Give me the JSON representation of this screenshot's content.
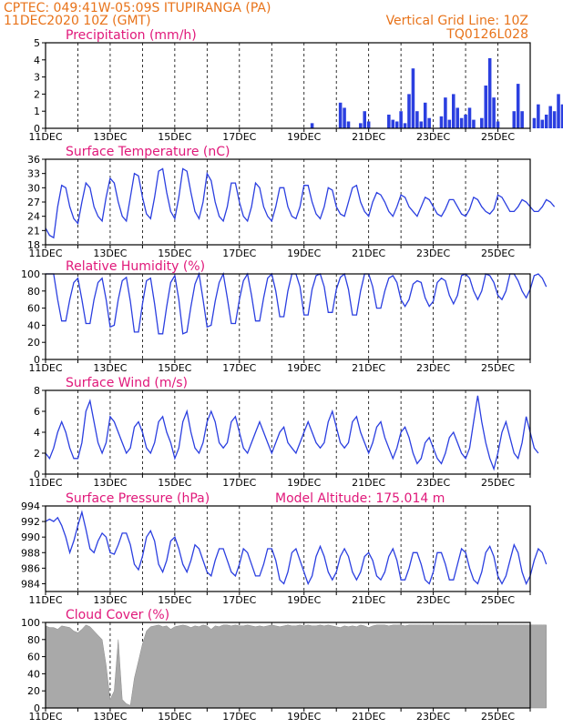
{
  "header": {
    "line1": "CPTEC:   049:41W-05:09S   ITUPIRANGA (PA)",
    "line2": "11DEC2020  10Z (GMT)",
    "right1": "Vertical Grid Line: 10Z",
    "right2": "TQ0126L028"
  },
  "x_tick_labels": [
    "11DEC",
    "13DEC",
    "15DEC",
    "17DEC",
    "19DEC",
    "21DEC",
    "23DEC",
    "25DEC"
  ],
  "colors": {
    "header": "#e8731a",
    "title": "#e0187a",
    "series": "#2b3fe0",
    "cloud": "#a9a9a9"
  },
  "chart_data": [
    {
      "type": "bar",
      "title": "Precipitation (mm/h)",
      "x_start": "11DEC2020 10Z",
      "x_step_hours": 3,
      "ylim": [
        0,
        5
      ],
      "yticks": [
        0,
        1,
        2,
        3,
        4,
        5
      ],
      "values": [
        0,
        0,
        0,
        0,
        0,
        0,
        0,
        0,
        0,
        0,
        0,
        0,
        0,
        0,
        0,
        0,
        0,
        0,
        0,
        0,
        0,
        0,
        0,
        0,
        0,
        0,
        0,
        0,
        0,
        0,
        0,
        0,
        0,
        0,
        0,
        0,
        0,
        0,
        0,
        0,
        0,
        0,
        0,
        0,
        0,
        0,
        0,
        0,
        0,
        0,
        0,
        0,
        0,
        0,
        0,
        0,
        0,
        0,
        0,
        0,
        0,
        0,
        0,
        0,
        0,
        0,
        0.3,
        0,
        0,
        0,
        0,
        0,
        0,
        1.5,
        1.2,
        0.4,
        0,
        0,
        0.3,
        1.0,
        0.4,
        0,
        0,
        0,
        0,
        0.8,
        0.5,
        0.4,
        1.0,
        0.3,
        2.0,
        3.5,
        1.0,
        0.4,
        1.5,
        0.6,
        0,
        0,
        0.7,
        1.8,
        0.5,
        2.0,
        1.2,
        0.6,
        0.8,
        1.2,
        0.5,
        0,
        0.6,
        2.5,
        4.1,
        1.8,
        0.4,
        0,
        0,
        0,
        1.0,
        2.6,
        1.0,
        0,
        0,
        0.6,
        1.4,
        0.5,
        0.8,
        1.3,
        1.0,
        2.0,
        1.4,
        1.0
      ]
    },
    {
      "type": "line",
      "title": "Surface Temperature (nC)",
      "x_start": "11DEC2020 10Z",
      "x_step_hours": 3,
      "ylim": [
        18,
        36
      ],
      "yticks": [
        18,
        21,
        24,
        27,
        30,
        33,
        36
      ],
      "values": [
        21.5,
        20,
        19.5,
        26,
        30.5,
        30,
        26,
        23.5,
        22.5,
        27,
        31,
        30,
        26,
        24,
        23,
        28,
        32,
        31,
        27,
        24,
        23,
        28,
        33,
        32.5,
        28,
        24.5,
        23.5,
        28,
        33.5,
        34,
        29,
        25,
        23.5,
        28,
        34,
        33.5,
        29,
        25,
        23.5,
        27,
        33,
        31.5,
        27,
        24,
        23,
        26,
        31,
        31,
        27,
        24,
        23,
        26,
        31,
        30,
        26,
        24,
        23,
        26,
        30,
        30,
        26,
        24,
        23.5,
        26,
        30.5,
        30.5,
        27,
        24.5,
        23.5,
        26,
        30,
        29.5,
        26,
        24.5,
        24,
        27,
        30,
        30.5,
        27,
        25,
        24,
        27,
        29,
        28.5,
        27,
        25,
        24,
        26,
        28.5,
        28,
        26,
        25,
        24,
        26,
        28,
        27.5,
        26,
        24.5,
        24,
        25.5,
        27.5,
        27.5,
        26,
        24.5,
        24,
        25.5,
        28,
        27.5,
        26,
        25,
        24.5,
        25.5,
        28.5,
        28,
        26.5,
        25,
        25,
        26,
        27.5,
        27,
        26,
        25,
        25,
        26,
        27.5,
        27,
        26
      ]
    },
    {
      "type": "line",
      "title": "Relative Humidity (%)",
      "x_start": "11DEC2020 10Z",
      "x_step_hours": 3,
      "ylim": [
        0,
        100
      ],
      "yticks": [
        0,
        20,
        40,
        60,
        80,
        100
      ],
      "values": [
        100,
        100,
        100,
        70,
        45,
        45,
        70,
        90,
        95,
        70,
        42,
        42,
        70,
        90,
        95,
        70,
        38,
        40,
        70,
        92,
        96,
        68,
        32,
        32,
        65,
        92,
        95,
        65,
        30,
        30,
        62,
        90,
        98,
        70,
        30,
        32,
        62,
        88,
        100,
        70,
        38,
        40,
        68,
        90,
        100,
        72,
        42,
        42,
        70,
        92,
        100,
        75,
        45,
        45,
        72,
        95,
        100,
        80,
        50,
        50,
        80,
        100,
        100,
        85,
        52,
        52,
        82,
        98,
        100,
        85,
        55,
        55,
        82,
        96,
        100,
        82,
        52,
        52,
        80,
        100,
        100,
        85,
        60,
        60,
        80,
        95,
        98,
        90,
        70,
        62,
        70,
        88,
        92,
        90,
        72,
        62,
        68,
        90,
        95,
        92,
        75,
        65,
        75,
        98,
        100,
        95,
        80,
        70,
        80,
        100,
        98,
        90,
        75,
        70,
        80,
        100,
        100,
        92,
        80,
        72,
        82,
        98,
        100,
        95,
        85
      ]
    },
    {
      "type": "line",
      "title": "Surface Wind (m/s)",
      "x_start": "11DEC2020 10Z",
      "x_step_hours": 3,
      "ylim": [
        0,
        8
      ],
      "yticks": [
        0,
        2,
        4,
        6,
        8
      ],
      "values": [
        2,
        1.5,
        2.5,
        4,
        5,
        4,
        2.5,
        1.5,
        1.5,
        3,
        6,
        7,
        5,
        3,
        2,
        3,
        5.5,
        5,
        4,
        3,
        2,
        2.5,
        4.5,
        5,
        4,
        2.5,
        2,
        3,
        5,
        5.5,
        4,
        3,
        1.5,
        2.5,
        5,
        6,
        4,
        2.5,
        2,
        3,
        5,
        6,
        5,
        3,
        2.5,
        3,
        5,
        5.5,
        4,
        2.5,
        2,
        3,
        4,
        5,
        4,
        3,
        2,
        3,
        4,
        4.5,
        3,
        2.5,
        2,
        3,
        4,
        5,
        4,
        3,
        2.5,
        3,
        5,
        6,
        4.5,
        3,
        2.5,
        3,
        5,
        5.5,
        4,
        3,
        2,
        3,
        4.5,
        5,
        3.5,
        2.5,
        1.5,
        2.5,
        4,
        4.5,
        3.5,
        2,
        1,
        1.5,
        3,
        3.5,
        2.5,
        1.5,
        1,
        2,
        3.5,
        4,
        3,
        2,
        1.5,
        2.5,
        5,
        7.5,
        5,
        3,
        1.5,
        0.5,
        2,
        4,
        5,
        3.5,
        2,
        1.5,
        3,
        5.5,
        4,
        2.5,
        2
      ]
    },
    {
      "type": "line",
      "title": "Surface Pressure (hPa)",
      "note": "Model Altitude: 175.014 m",
      "x_start": "11DEC2020 10Z",
      "x_step_hours": 3,
      "ylim": [
        983,
        994
      ],
      "yticks": [
        984,
        986,
        988,
        990,
        992,
        994
      ],
      "values": [
        992,
        992.3,
        992,
        992.5,
        991.5,
        990,
        988,
        989.5,
        991.5,
        993.2,
        991,
        988.5,
        988,
        989.5,
        990.5,
        990,
        988,
        987.8,
        989,
        990.5,
        990.5,
        989,
        986.5,
        985.8,
        987.5,
        990,
        990.8,
        989.5,
        986.5,
        985.5,
        987,
        989.5,
        990,
        988.5,
        986.5,
        985.5,
        987,
        989,
        988.5,
        987,
        985.5,
        985,
        987,
        988.5,
        988.5,
        987,
        985.5,
        985,
        986.5,
        988.5,
        988,
        986.5,
        985,
        985,
        986.5,
        988.5,
        988.5,
        987,
        984.5,
        984,
        985.5,
        988,
        988.5,
        987,
        985.5,
        984,
        985,
        987.5,
        988.8,
        987.5,
        985.5,
        984.5,
        985.5,
        987.5,
        988.5,
        987.5,
        985.5,
        984.5,
        985.5,
        987.5,
        988,
        987,
        985,
        984.5,
        985.5,
        987.5,
        988.5,
        987,
        984.5,
        984.5,
        986,
        988,
        988,
        986.5,
        984.5,
        984,
        985.5,
        988,
        988,
        986.5,
        984.5,
        984.5,
        986.5,
        988.5,
        988,
        986,
        984.5,
        984,
        985.5,
        988,
        988.8,
        987.5,
        985,
        984,
        985,
        987,
        989,
        988,
        985.5,
        984,
        985,
        987,
        988.5,
        988,
        986.5
      ]
    },
    {
      "type": "area",
      "title": "Cloud Cover (%)",
      "x_start": "11DEC2020 10Z",
      "x_step_hours": 3,
      "ylim": [
        0,
        100
      ],
      "yticks": [
        0,
        20,
        40,
        60,
        80,
        100
      ],
      "values": [
        96,
        94,
        94,
        92,
        96,
        95,
        94,
        90,
        88,
        92,
        97,
        95,
        90,
        85,
        80,
        50,
        10,
        20,
        80,
        10,
        5,
        3,
        35,
        55,
        75,
        90,
        95,
        96,
        97,
        95,
        96,
        92,
        95,
        96,
        97,
        96,
        94,
        96,
        95,
        97,
        96,
        92,
        96,
        95,
        97,
        97,
        96,
        97,
        96,
        96,
        97,
        96,
        95,
        96,
        95,
        96,
        97,
        96,
        95,
        96,
        97,
        96,
        96,
        97,
        96,
        97,
        96,
        96,
        97,
        96,
        97,
        96,
        95,
        94,
        96,
        95,
        96,
        95,
        97,
        96,
        94,
        96,
        97,
        97,
        97,
        96,
        97,
        97,
        97,
        96,
        97,
        97,
        97,
        97,
        97,
        97,
        97,
        97,
        97,
        97,
        97,
        97,
        97,
        97,
        97,
        97,
        97,
        97,
        97,
        97,
        97,
        97,
        97,
        97,
        97,
        97,
        97,
        97,
        97,
        97,
        97,
        97,
        97,
        97,
        97
      ]
    }
  ]
}
